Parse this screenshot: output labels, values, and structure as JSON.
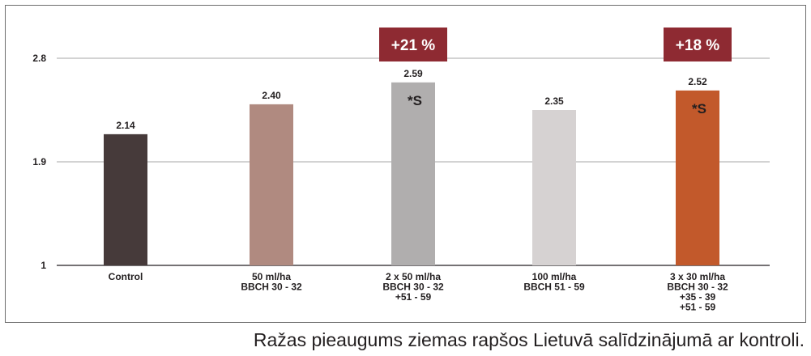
{
  "chart_data": {
    "type": "bar",
    "title": "",
    "xlabel": "",
    "ylabel": "",
    "ylim": [
      1,
      2.8
    ],
    "yticks": [
      1,
      1.9,
      2.8
    ],
    "ytick_labels": [
      "1",
      "1.9",
      "2.8"
    ],
    "grid": "horizontal",
    "categories": [
      [
        "Control"
      ],
      [
        "50 ml/ha",
        "BBCH 30 - 32"
      ],
      [
        "2 x 50 ml/ha",
        "BBCH 30 - 32",
        "+51 - 59"
      ],
      [
        "100 ml/ha",
        "BBCH 51 - 59"
      ],
      [
        "3 x 30 ml/ha",
        "BBCH 30 - 32",
        "+35 - 39",
        "+51 - 59"
      ]
    ],
    "values": [
      2.14,
      2.4,
      2.59,
      2.35,
      2.52
    ],
    "value_labels": [
      "2.14",
      "2.40",
      "2.59",
      "2.35",
      "2.52"
    ],
    "bar_colors": [
      "#463a3a",
      "#b08a80",
      "#b0aeae",
      "#d6d2d2",
      "#c2592b"
    ],
    "annotations": [
      {
        "bar": 2,
        "badge": "+21 %",
        "mark": "*S"
      },
      {
        "bar": 4,
        "badge": "+18 %",
        "mark": "*S"
      }
    ],
    "badge_color": "#8e2a32"
  },
  "caption": "Ražas pieaugums ziemas rapšos Lietuvā salīdzinājumā ar kontroli."
}
